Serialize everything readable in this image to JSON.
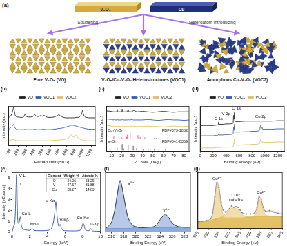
{
  "diagram": {
    "panel": "(a)",
    "targets": [
      "V₂O₅",
      "Cu"
    ],
    "arrows": [
      "Sputtering",
      "Heteroatom introducing"
    ],
    "structures": [
      "Pure V₂O₅ (VO)",
      "V₂O₅/Cu₂V₂O₇ Heterostructures (VOC1)",
      "Amorphous Cu₂V₂O₇ (VOC2)"
    ]
  },
  "chart_data": [
    {
      "panel": "(b)",
      "type": "line",
      "x_label": "Raman shift (cm⁻¹)",
      "y_label": "Intensity (a.u.)",
      "xlim": [
        80,
        1150
      ],
      "xticks": [
        100,
        200,
        300,
        400,
        500,
        600,
        700,
        800,
        900,
        1000,
        1100
      ],
      "ylim": [
        0,
        100
      ],
      "tick_labels": "x",
      "grid": false,
      "legend": "top",
      "x": [
        80,
        100,
        120,
        135,
        145,
        155,
        170,
        200,
        240,
        270,
        285,
        300,
        330,
        380,
        405,
        430,
        460,
        480,
        500,
        520,
        540,
        580,
        640,
        680,
        700,
        720,
        760,
        800,
        830,
        850,
        870,
        890,
        910,
        930,
        960,
        985,
        995,
        1005,
        1040,
        1100,
        1150
      ],
      "series": [
        {
          "name": "VO",
          "color": "#222222",
          "values": [
            72,
            74,
            80,
            90,
            98,
            86,
            75,
            73,
            72,
            74,
            80,
            75,
            73,
            74,
            79,
            74,
            75,
            77,
            75,
            77,
            74,
            72,
            73,
            76,
            79,
            76,
            72,
            71,
            71,
            71,
            71,
            71,
            72,
            72,
            74,
            82,
            90,
            80,
            72,
            71,
            71
          ]
        },
        {
          "name": "VOC1",
          "color": "#3b5ca8",
          "values": [
            42,
            44,
            48,
            52,
            54,
            48,
            43,
            41,
            41,
            41,
            42,
            41,
            41,
            41,
            42,
            41,
            41,
            41,
            42,
            42,
            41,
            41,
            42,
            43,
            44,
            44,
            46,
            48,
            50,
            52,
            52,
            51,
            50,
            49,
            47,
            46,
            46,
            45,
            43,
            42,
            42
          ]
        },
        {
          "name": "VOC2",
          "color": "#e2bf66",
          "values": [
            13,
            14,
            15,
            16,
            16,
            15,
            14,
            13,
            13,
            13,
            13,
            13,
            13,
            13,
            13,
            13,
            13,
            13,
            13,
            13,
            13,
            13,
            14,
            14,
            15,
            15,
            16,
            18,
            22,
            28,
            24,
            22,
            27,
            22,
            17,
            15,
            15,
            14,
            13,
            13,
            13
          ]
        }
      ]
    },
    {
      "panel": "(c)",
      "type": "line",
      "x_label": "2 Theta (Deg.)",
      "y_label": "Intensity (a.u.)",
      "xlim": [
        5,
        85
      ],
      "xticks": [
        10,
        20,
        30,
        40,
        50,
        60,
        70,
        80
      ],
      "ylim": [
        0,
        100
      ],
      "tick_labels": "x",
      "grid": false,
      "legend": "top",
      "x": [
        5,
        10,
        12,
        12.3,
        13,
        15,
        15.4,
        16,
        20,
        20.3,
        21,
        25,
        26.1,
        27,
        30,
        31,
        35,
        40,
        45,
        50,
        55,
        60,
        65,
        70,
        75,
        80,
        85
      ],
      "series": [
        {
          "name": "VO",
          "color": "#222222",
          "values": [
            90,
            89,
            88,
            88,
            88,
            88,
            94,
            88,
            88,
            94,
            88,
            88,
            93,
            88,
            88,
            91,
            88,
            89,
            88,
            87,
            88,
            89,
            88,
            87,
            88,
            88,
            88
          ]
        },
        {
          "name": "VOC1",
          "color": "#3b5ca8",
          "values": [
            72,
            71,
            70,
            73,
            70,
            70,
            72,
            70,
            70,
            72,
            70,
            70,
            71,
            70,
            71,
            70,
            70,
            70,
            71,
            70,
            69,
            70,
            71,
            70,
            70,
            69,
            70
          ]
        },
        {
          "name": "VOC2",
          "color": "#e2bf66",
          "values": [
            58,
            56,
            55,
            56,
            55,
            55,
            55,
            55,
            55,
            56,
            55,
            55,
            55,
            55,
            56,
            55,
            55,
            55,
            56,
            55,
            55,
            54,
            55,
            56,
            55,
            55,
            55
          ]
        }
      ],
      "references": [
        {
          "name": "Cu₂V₂O₇",
          "code": "PDF#073-1032",
          "color": "#e06c75",
          "baseline": 27,
          "peaks": [
            12.2,
            20.1,
            24.6,
            25.4,
            28.1,
            30,
            34.6,
            35.6,
            37.7,
            42.2,
            51.5,
            53.1,
            58,
            64
          ],
          "heights": [
            6,
            4,
            5,
            10,
            14,
            8,
            6,
            9,
            5,
            4,
            3,
            3,
            2,
            2
          ]
        },
        {
          "name": "V₂O₅",
          "code": "PDF#041-0359",
          "color": "#7a4a4a",
          "baseline": 2,
          "peaks": [
            15.4,
            20.3,
            21.7,
            26.1,
            31,
            32.4,
            34.3,
            41.3,
            45.5,
            47.4,
            51.3,
            55.7,
            62.1
          ],
          "heights": [
            6,
            14,
            4,
            12,
            10,
            3,
            5,
            3,
            3,
            4,
            3,
            3,
            3
          ]
        }
      ]
    },
    {
      "panel": "(d)",
      "type": "line",
      "x_label": "Binding energy (eV)",
      "y_label": "Intensity (a.u.)",
      "xlim": [
        0,
        1300
      ],
      "xticks": [
        0,
        200,
        400,
        600,
        800,
        1000,
        1200
      ],
      "ylim": [
        0,
        110
      ],
      "tick_labels": "x",
      "grid": false,
      "legend": "top",
      "x": [
        0,
        50,
        100,
        150,
        200,
        250,
        280,
        285,
        290,
        350,
        400,
        450,
        500,
        510,
        517,
        525,
        530,
        535,
        550,
        600,
        700,
        750,
        800,
        850,
        900,
        920,
        935,
        945,
        955,
        965,
        1000,
        1050,
        1100,
        1200,
        1300
      ],
      "series": [
        {
          "name": "VO",
          "color": "#222222",
          "values": [
            62,
            63,
            63,
            63,
            63,
            64,
            66,
            72,
            66,
            66,
            67,
            67,
            68,
            70,
            88,
            80,
            95,
            76,
            73,
            73,
            74,
            74,
            74,
            74,
            74,
            74,
            74,
            74,
            74,
            74,
            74,
            74,
            74,
            75,
            75
          ]
        },
        {
          "name": "VOC1",
          "color": "#3b5ca8",
          "values": [
            38,
            38,
            38,
            38,
            38,
            39,
            40,
            43,
            40,
            40,
            41,
            41,
            42,
            44,
            58,
            52,
            66,
            50,
            47,
            47,
            48,
            48,
            49,
            49,
            50,
            52,
            64,
            56,
            60,
            54,
            54,
            54,
            54,
            55,
            55
          ]
        },
        {
          "name": "VOC2",
          "color": "#e2bf66",
          "values": [
            8,
            8,
            8,
            8,
            8,
            9,
            9,
            11,
            9,
            10,
            10,
            10,
            11,
            12,
            20,
            18,
            30,
            17,
            15,
            15,
            16,
            16,
            17,
            17,
            18,
            19,
            29,
            23,
            26,
            22,
            22,
            22,
            22,
            23,
            23
          ]
        }
      ],
      "annotations": [
        {
          "text": "C 1s",
          "x": 285,
          "y": 75
        },
        {
          "text": "V 2p",
          "x": 400,
          "y": 86
        },
        {
          "text": "O 1s",
          "x": 560,
          "y": 100
        },
        {
          "text": "Cu 2p",
          "x": 935,
          "y": 80
        }
      ]
    },
    {
      "panel": "(e)",
      "type": "line",
      "x_label": "Energy (keV)",
      "y_label": "Intensity (kCounts)",
      "xlim": [
        0,
        10
      ],
      "xticks": [
        0,
        2,
        4,
        6,
        8,
        10
      ],
      "ylim": [
        0,
        5.5
      ],
      "yticks": [
        0,
        1,
        2,
        3,
        4,
        5
      ],
      "grid": false,
      "x": [
        0,
        0.1,
        0.2,
        0.3,
        0.4,
        0.45,
        0.51,
        0.55,
        0.6,
        0.7,
        0.8,
        0.93,
        1.05,
        1.2,
        1.5,
        2,
        2.29,
        2.5,
        3,
        3.5,
        4,
        4.5,
        4.8,
        4.95,
        5.1,
        5.3,
        5.43,
        5.6,
        6,
        7,
        7.8,
        8.04,
        8.3,
        8.7,
        8.9,
        9.1,
        9.5,
        10
      ],
      "series": [
        {
          "color": "#2f4f9a",
          "values": [
            0,
            0.3,
            0.6,
            0.8,
            2.5,
            4.2,
            5.3,
            4.4,
            2,
            0.8,
            0.9,
            1.4,
            0.6,
            0.3,
            0.2,
            0.15,
            0.3,
            0.15,
            0.12,
            0.12,
            0.15,
            0.4,
            1.6,
            2.8,
            1.4,
            0.5,
            0.7,
            0.3,
            0.12,
            0.1,
            0.2,
            0.8,
            0.2,
            0.12,
            0.3,
            0.1,
            0.08,
            0.06
          ]
        }
      ],
      "annotations": [
        {
          "text": "V-L",
          "x": 1.15,
          "y": 5
        },
        {
          "text": "O",
          "x": 1.1,
          "y": 4.2
        },
        {
          "text": "Cu-L",
          "x": 1.6,
          "y": 1.5
        },
        {
          "text": "Mo-L",
          "x": 2.6,
          "y": 0.5
        },
        {
          "text": "V-Kα",
          "x": 4.3,
          "y": 2.7
        },
        {
          "text": "V-Kβ",
          "x": 5.9,
          "y": 0.9
        },
        {
          "text": "Cu-Kα",
          "x": 8,
          "y": 1.1
        },
        {
          "text": "Cu-Kβ",
          "x": 9.2,
          "y": 0.5
        }
      ],
      "table": {
        "columns": [
          "Element",
          "Weight %",
          "Atomic %"
        ],
        "rows": [
          [
            "O",
            24.06,
            53.29
          ],
          [
            "V",
            47.67,
            31.88
          ],
          [
            "Cu",
            28.27,
            14.83
          ]
        ]
      }
    },
    {
      "panel": "(f)",
      "type": "line",
      "x_label": "Binding Energy (eV)",
      "xlim": [
        515,
        529
      ],
      "xticks": [
        516,
        518,
        520,
        522,
        524,
        526,
        528
      ],
      "ylim": [
        0,
        100
      ],
      "tick_labels": "x",
      "grid": false,
      "x": [
        515,
        515.5,
        516,
        516.5,
        517,
        517.4,
        517.8,
        518.2,
        518.6,
        519,
        519.5,
        520,
        521,
        522,
        523,
        523.5,
        524,
        524.5,
        524.8,
        525.2,
        525.6,
        526,
        526.5,
        527,
        528,
        529
      ],
      "series": [
        {
          "color": "#333333",
          "values": [
            6,
            10,
            17,
            36,
            67,
            87,
            71,
            49,
            28,
            18,
            11,
            9,
            7,
            8,
            9,
            13,
            21,
            27,
            30,
            27,
            21,
            15,
            11,
            9,
            8,
            8
          ]
        },
        {
          "type": "area",
          "color": "#5f86cf",
          "values": [
            6,
            9,
            16,
            35,
            68,
            86,
            72,
            48,
            28,
            17,
            11,
            8,
            7,
            7,
            7,
            7,
            7,
            7,
            7,
            7,
            7,
            7,
            7,
            7,
            7,
            7
          ]
        },
        {
          "type": "area",
          "color": "#5f86cf",
          "values": [
            6,
            6,
            6,
            6,
            6,
            6,
            6,
            6,
            6,
            6,
            7,
            7,
            7,
            7,
            9,
            13,
            20,
            27,
            29,
            27,
            21,
            15,
            11,
            9,
            8,
            8
          ]
        }
      ],
      "annotations": [
        {
          "text": "V⁵⁺",
          "x": 519.2,
          "y": 78
        },
        {
          "text": "V⁵⁺",
          "x": 525,
          "y": 33
        }
      ]
    },
    {
      "panel": "(g)",
      "type": "line",
      "x_label": "Binding Energy (eV)",
      "xlim": [
        925,
        965
      ],
      "xticks": [
        925,
        930,
        935,
        940,
        945,
        950,
        955,
        960,
        965
      ],
      "ylim": [
        0,
        85
      ],
      "tick_labels": "x",
      "grid": false,
      "x": [
        925,
        927,
        929,
        931,
        932,
        933,
        934,
        935,
        936,
        937,
        938,
        940,
        941,
        942,
        943,
        944,
        945,
        946,
        948,
        950,
        952,
        953,
        954,
        955,
        956,
        957,
        959,
        961,
        963,
        965
      ],
      "series": [
        {
          "color": "#8c8c8c",
          "marker": "circle",
          "values": [
            10,
            11,
            12,
            15,
            24,
            48,
            70,
            62,
            40,
            28,
            25,
            30,
            34,
            32,
            33,
            32,
            28,
            24,
            22,
            22,
            24,
            32,
            48,
            44,
            32,
            26,
            27,
            25,
            23,
            22
          ]
        },
        {
          "type": "area",
          "color": "#e0b548",
          "values": [
            10,
            10,
            11,
            13,
            22,
            45,
            66,
            58,
            35,
            20,
            16,
            16,
            16,
            16,
            16,
            16,
            16,
            16,
            17,
            17,
            18,
            18,
            18,
            18,
            18,
            18,
            18,
            18,
            18,
            18
          ]
        },
        {
          "type": "area",
          "color": "#e0b548",
          "values": [
            10,
            10,
            11,
            12,
            13,
            14,
            15,
            16,
            17,
            19,
            22,
            28,
            31,
            30,
            31,
            29,
            25,
            21,
            18,
            17,
            18,
            18,
            18,
            18,
            18,
            18,
            18,
            18,
            18,
            18
          ]
        },
        {
          "type": "area",
          "color": "#e0b548",
          "values": [
            10,
            10,
            11,
            12,
            13,
            14,
            15,
            16,
            16,
            16,
            16,
            16,
            16,
            16,
            16,
            16,
            16,
            16,
            17,
            18,
            20,
            28,
            44,
            40,
            28,
            21,
            19,
            18,
            18,
            18
          ]
        }
      ],
      "annotations": [
        {
          "text": [
            "Cu²⁺"
          ],
          "x": 934,
          "y": 73
        },
        {
          "text": [
            "Cu²⁺",
            "satellite"
          ],
          "x": 943,
          "y": 40
        },
        {
          "text": [
            "Cu²⁺"
          ],
          "x": 955,
          "y": 52
        }
      ]
    }
  ]
}
